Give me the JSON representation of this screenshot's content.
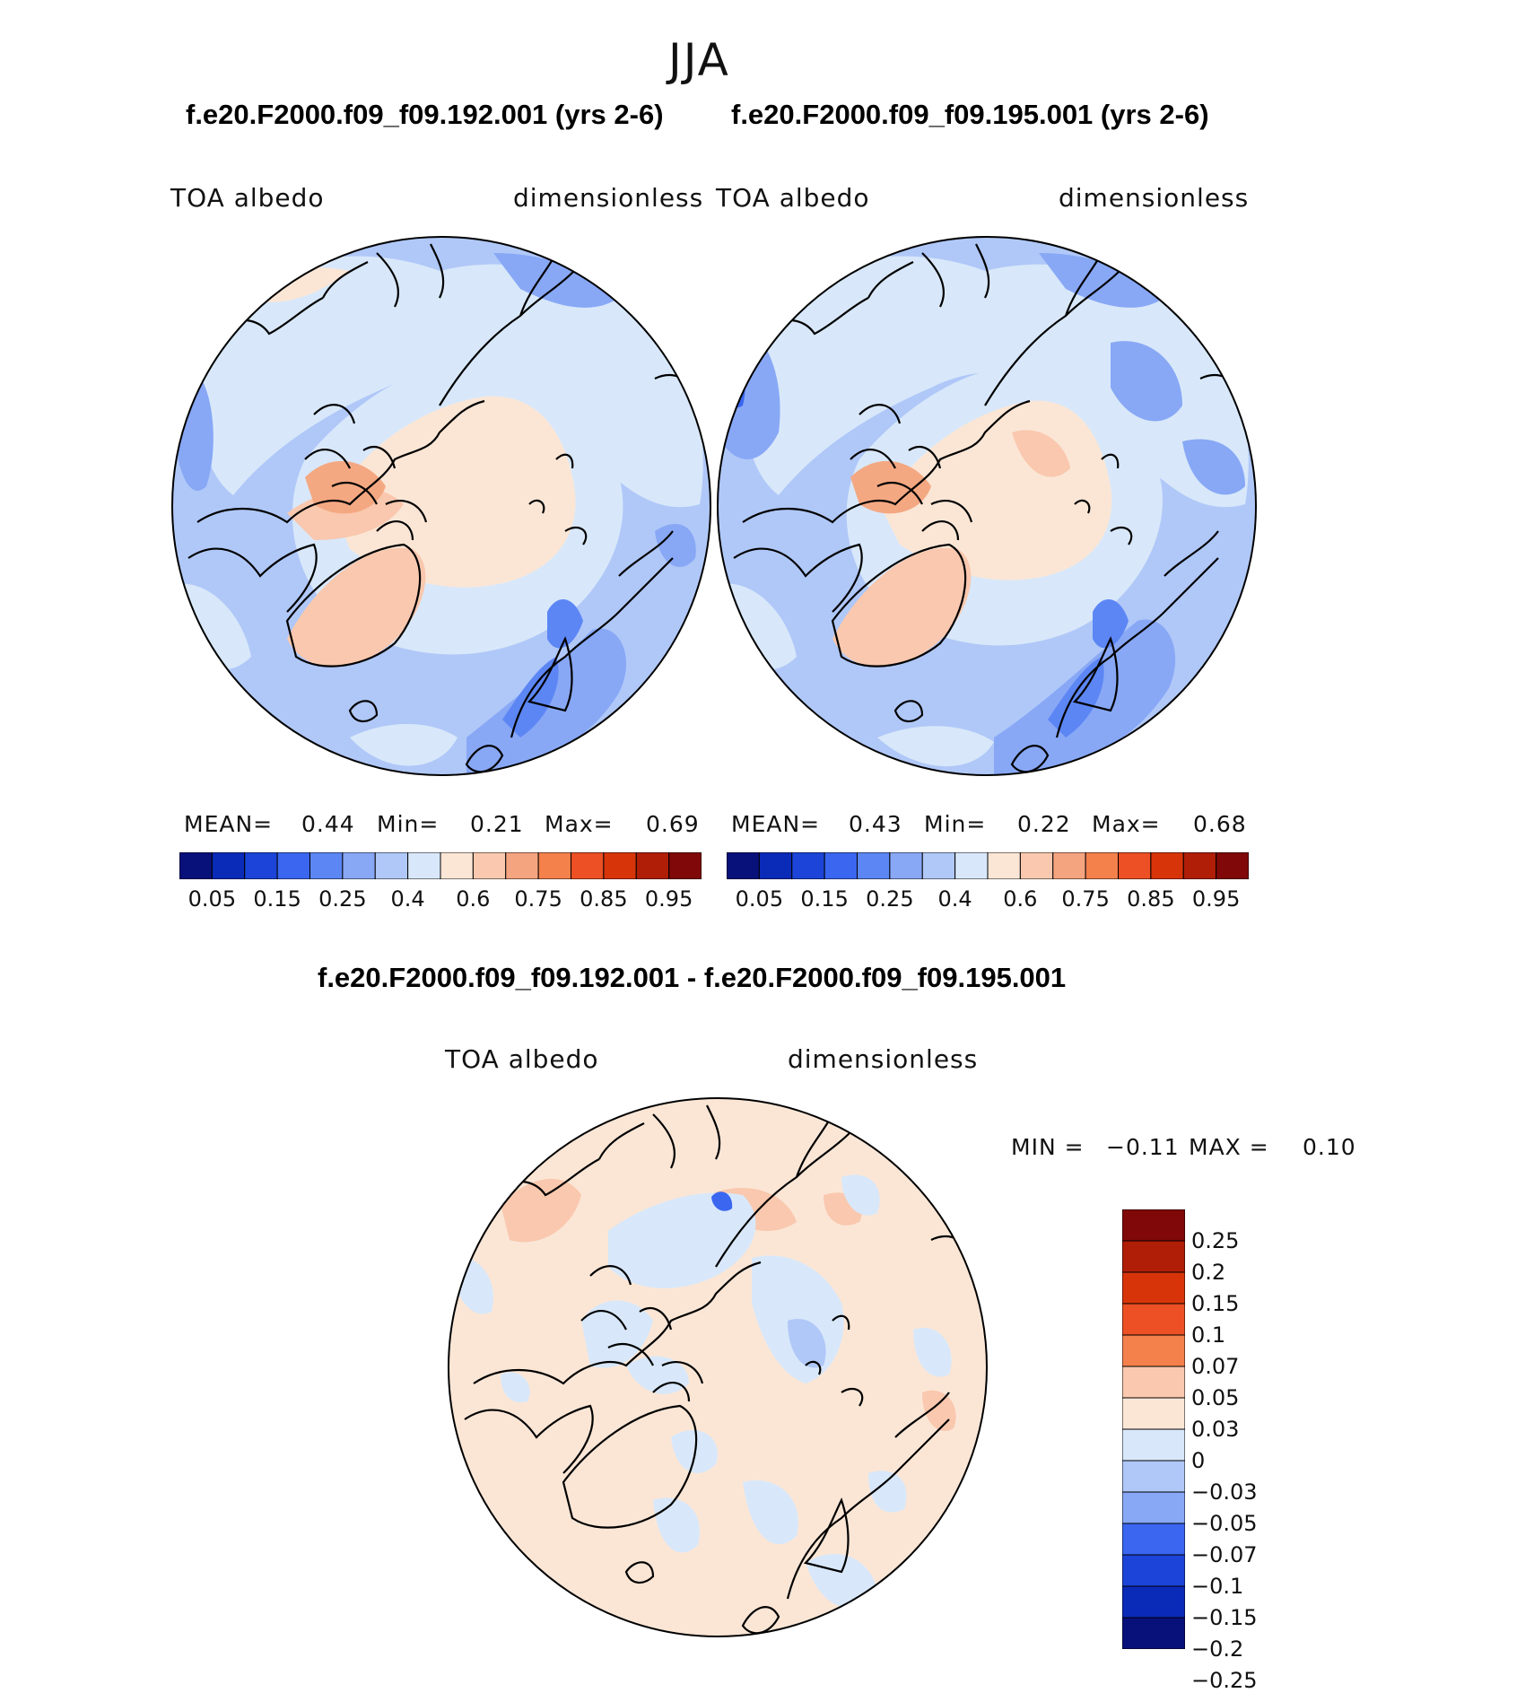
{
  "header": {
    "season": "JJA"
  },
  "panels": [
    {
      "case_title": "f.e20.F2000.f09_f09.192.001 (yrs 2-6)",
      "variable": "TOA albedo",
      "units": "dimensionless",
      "stats": {
        "mean_label": "MEAN=",
        "mean": "0.44",
        "min_label": "Min=",
        "min": "0.21",
        "max_label": "Max=",
        "max": "0.69"
      }
    },
    {
      "case_title": "f.e20.F2000.f09_f09.195.001 (yrs 2-6)",
      "variable": "TOA albedo",
      "units": "dimensionless",
      "stats": {
        "mean_label": "MEAN=",
        "mean": "0.43",
        "min_label": "Min=",
        "min": "0.22",
        "max_label": "Max=",
        "max": "0.68"
      }
    }
  ],
  "abs_colorbar": {
    "colors": [
      "#08107a",
      "#0a2ab8",
      "#1c44d8",
      "#3a66f0",
      "#5c86f4",
      "#88a8f6",
      "#b0c8f8",
      "#d8e8fa",
      "#fbe6d6",
      "#f9c8ae",
      "#f5a480",
      "#f4804c",
      "#ec5024",
      "#d8340a",
      "#b01e08",
      "#800808"
    ],
    "tick_labels": [
      "0.05",
      "0.15",
      "0.25",
      "0.4",
      "0.6",
      "0.75",
      "0.85",
      "0.95"
    ]
  },
  "diff_panel": {
    "title": "f.e20.F2000.f09_f09.192.001 - f.e20.F2000.f09_f09.195.001",
    "variable": "TOA albedo",
    "units": "dimensionless",
    "stats": {
      "min_label": "MIN =",
      "min": "−0.11",
      "max_label": "MAX =",
      "max": "0.10"
    },
    "colorbar": {
      "colors": [
        "#800808",
        "#b01e08",
        "#d8340a",
        "#ec5024",
        "#f4804c",
        "#f9c8ae",
        "#fbe6d6",
        "#d8e8fa",
        "#b0c8f8",
        "#88a8f6",
        "#3a66f0",
        "#1c44d8",
        "#0a2ab8",
        "#08107a"
      ],
      "tick_labels": [
        "0.25",
        "0.2",
        "0.15",
        "0.1",
        "0.07",
        "0.05",
        "0.03",
        "0",
        "−0.03",
        "−0.05",
        "−0.07",
        "−0.1",
        "−0.15",
        "−0.2",
        "−0.25"
      ]
    }
  }
}
